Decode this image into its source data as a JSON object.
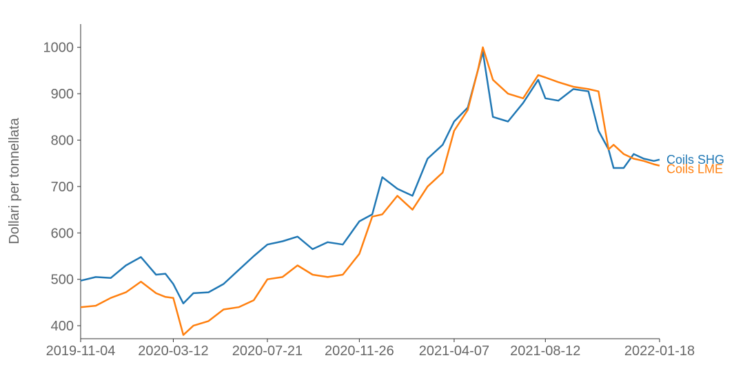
{
  "chart_data": {
    "type": "line",
    "y_label": "Dollari per tonnellata",
    "x": [
      "2019-11-04",
      "2019-11-25",
      "2019-12-16",
      "2020-01-06",
      "2020-01-27",
      "2020-02-17",
      "2020-03-01",
      "2020-03-12",
      "2020-03-26",
      "2020-04-09",
      "2020-04-30",
      "2020-05-21",
      "2020-06-11",
      "2020-07-02",
      "2020-07-21",
      "2020-08-11",
      "2020-09-01",
      "2020-09-22",
      "2020-10-13",
      "2020-11-03",
      "2020-11-26",
      "2020-12-14",
      "2020-12-28",
      "2021-01-18",
      "2021-02-08",
      "2021-03-01",
      "2021-03-22",
      "2021-04-07",
      "2021-04-26",
      "2021-05-10",
      "2021-05-17",
      "2021-05-31",
      "2021-06-21",
      "2021-07-12",
      "2021-08-02",
      "2021-08-12",
      "2021-08-30",
      "2021-09-20",
      "2021-10-11",
      "2021-10-25",
      "2021-11-08",
      "2021-11-15",
      "2021-11-29",
      "2021-12-13",
      "2021-12-27",
      "2022-01-10",
      "2022-01-18"
    ],
    "series": [
      {
        "name": "Coils SHG",
        "color": "#1f77b4",
        "values": [
          497,
          505,
          503,
          530,
          548,
          510,
          512,
          490,
          448,
          470,
          472,
          490,
          520,
          550,
          575,
          582,
          592,
          565,
          580,
          575,
          625,
          640,
          720,
          695,
          680,
          760,
          790,
          840,
          870,
          950,
          990,
          850,
          840,
          880,
          930,
          890,
          885,
          910,
          905,
          820,
          780,
          740,
          740,
          770,
          760,
          755,
          758
        ]
      },
      {
        "name": "Coils LME",
        "color": "#ff7f0e",
        "values": [
          440,
          443,
          460,
          472,
          495,
          470,
          462,
          460,
          380,
          400,
          410,
          435,
          440,
          455,
          500,
          505,
          530,
          510,
          505,
          510,
          555,
          635,
          640,
          680,
          650,
          700,
          730,
          820,
          865,
          950,
          1000,
          930,
          900,
          890,
          940,
          935,
          925,
          915,
          910,
          905,
          780,
          790,
          770,
          760,
          755,
          748,
          745
        ]
      }
    ],
    "xlim": [
      "2019-11-04",
      "2022-01-18"
    ],
    "xticks": [
      "2019-11-04",
      "2020-03-12",
      "2020-07-21",
      "2020-11-26",
      "2021-04-07",
      "2021-08-12",
      "2022-01-18"
    ],
    "ylim": [
      372,
      1050
    ],
    "yticks": [
      400,
      500,
      600,
      700,
      800,
      900,
      1000
    ]
  }
}
